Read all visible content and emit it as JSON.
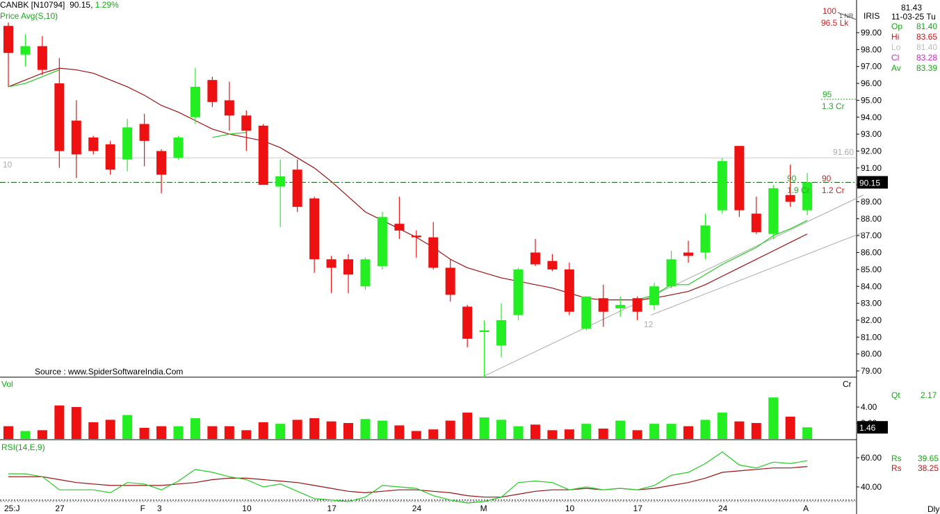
{
  "header": {
    "symbol": "CANBK [N10794]",
    "last": "90.15,",
    "change": "1.29%",
    "indicator": "Price  Avg(S,10)"
  },
  "source": "Source : www.SpiderSoftwareIndia.Com",
  "info": {
    "price": "81.43",
    "date": "11-03-25 Tu",
    "iris": "IRIS",
    "rows": [
      {
        "label": "Op",
        "value": "81.40",
        "color": "#11aa11"
      },
      {
        "label": "Hi",
        "value": "83.65",
        "color": "#cc1111"
      },
      {
        "label": "Lo",
        "value": "81.40",
        "color": "#bbbbbb"
      },
      {
        "label": "Cl",
        "value": "83.28",
        "color": "#cc22cc"
      },
      {
        "label": "Av",
        "value": "83.39",
        "color": "#11aa11"
      }
    ]
  },
  "annotations": {
    "top_price": "100",
    "top_lk": "96.5 Lk",
    "top_nr": "1 NR",
    "mid_price": "95",
    "mid_cr": "1.3 Cr",
    "right_green_price": "90",
    "right_green_cr": "1.9 Cr",
    "right_red_price": "90",
    "right_red_cr": "1.2 Cr",
    "resist_label": "91.60",
    "left_ten": "10",
    "low_twelve": "12",
    "last_price_box": "90.15"
  },
  "chart_data": [
    {
      "type": "candlestick",
      "name": "Price",
      "ylim": [
        78.5,
        100
      ],
      "yticks": [
        "79.00",
        "80.00",
        "81.00",
        "82.00",
        "83.00",
        "84.00",
        "85.00",
        "86.00",
        "87.00",
        "88.00",
        "89.00",
        "90.00",
        "91.00",
        "92.00",
        "93.00",
        "94.00",
        "95.00",
        "96.00",
        "97.00",
        "98.00",
        "99.00"
      ],
      "xlabels": [
        {
          "i": 0,
          "label": "25:J"
        },
        {
          "i": 3,
          "label": "27"
        },
        {
          "i": 8,
          "label": "F"
        },
        {
          "i": 9,
          "label": "3"
        },
        {
          "i": 14,
          "label": "10"
        },
        {
          "i": 19,
          "label": "17"
        },
        {
          "i": 24,
          "label": "24"
        },
        {
          "i": 28,
          "label": "M"
        },
        {
          "i": 33,
          "label": "10"
        },
        {
          "i": 37,
          "label": "17"
        },
        {
          "i": 42,
          "label": "24"
        },
        {
          "i": 47,
          "label": "A"
        }
      ],
      "candles": [
        {
          "o": 99.4,
          "h": 99.6,
          "l": 95.8,
          "c": 97.8
        },
        {
          "o": 97.7,
          "h": 98.9,
          "l": 97.0,
          "c": 98.2
        },
        {
          "o": 98.2,
          "h": 98.8,
          "l": 96.5,
          "c": 96.8
        },
        {
          "o": 96.0,
          "h": 97.5,
          "l": 91.0,
          "c": 92.0
        },
        {
          "o": 93.8,
          "h": 95.0,
          "l": 90.4,
          "c": 91.8
        },
        {
          "o": 92.8,
          "h": 92.9,
          "l": 91.8,
          "c": 92.0
        },
        {
          "o": 92.4,
          "h": 92.6,
          "l": 90.6,
          "c": 90.9
        },
        {
          "o": 91.5,
          "h": 93.9,
          "l": 90.8,
          "c": 93.4
        },
        {
          "o": 93.6,
          "h": 94.2,
          "l": 91.1,
          "c": 92.6
        },
        {
          "o": 92.0,
          "h": 92.1,
          "l": 89.5,
          "c": 90.6
        },
        {
          "o": 91.6,
          "h": 92.9,
          "l": 91.5,
          "c": 92.8
        },
        {
          "o": 94.0,
          "h": 96.9,
          "l": 93.6,
          "c": 95.8
        },
        {
          "o": 96.2,
          "h": 96.4,
          "l": 94.6,
          "c": 94.9
        },
        {
          "o": 95.0,
          "h": 96.1,
          "l": 93.2,
          "c": 94.1
        },
        {
          "o": 94.1,
          "h": 94.4,
          "l": 92.0,
          "c": 93.2
        },
        {
          "o": 93.5,
          "h": 93.6,
          "l": 90.0,
          "c": 90.0
        },
        {
          "o": 89.9,
          "h": 91.5,
          "l": 87.5,
          "c": 90.5
        },
        {
          "o": 90.9,
          "h": 91.5,
          "l": 88.4,
          "c": 88.7
        },
        {
          "o": 89.2,
          "h": 89.3,
          "l": 84.8,
          "c": 85.6
        },
        {
          "o": 85.6,
          "h": 85.8,
          "l": 83.6,
          "c": 85.1
        },
        {
          "o": 85.6,
          "h": 85.9,
          "l": 83.6,
          "c": 84.7
        },
        {
          "o": 84.0,
          "h": 85.7,
          "l": 83.8,
          "c": 85.6
        },
        {
          "o": 85.2,
          "h": 88.4,
          "l": 85.0,
          "c": 88.1
        },
        {
          "o": 87.7,
          "h": 89.3,
          "l": 86.8,
          "c": 87.3
        },
        {
          "o": 87.0,
          "h": 87.3,
          "l": 85.7,
          "c": 86.9
        },
        {
          "o": 86.9,
          "h": 87.8,
          "l": 85.0,
          "c": 85.1
        },
        {
          "o": 85.1,
          "h": 85.6,
          "l": 83.1,
          "c": 83.5
        },
        {
          "o": 82.8,
          "h": 82.9,
          "l": 80.4,
          "c": 80.9
        },
        {
          "o": 81.3,
          "h": 82.0,
          "l": 78.6,
          "c": 81.4
        },
        {
          "o": 80.5,
          "h": 83.0,
          "l": 79.8,
          "c": 82.0
        },
        {
          "o": 82.3,
          "h": 85.1,
          "l": 82.0,
          "c": 85.0
        },
        {
          "o": 86.0,
          "h": 86.8,
          "l": 85.2,
          "c": 85.3
        },
        {
          "o": 85.5,
          "h": 85.9,
          "l": 84.9,
          "c": 85.0
        },
        {
          "o": 85.0,
          "h": 85.4,
          "l": 82.3,
          "c": 82.5
        },
        {
          "o": 81.5,
          "h": 83.4,
          "l": 81.4,
          "c": 83.4
        },
        {
          "o": 83.3,
          "h": 84.1,
          "l": 81.6,
          "c": 82.5
        },
        {
          "o": 82.7,
          "h": 83.4,
          "l": 82.2,
          "c": 82.9
        },
        {
          "o": 83.3,
          "h": 83.4,
          "l": 82.0,
          "c": 82.5
        },
        {
          "o": 82.9,
          "h": 84.2,
          "l": 82.6,
          "c": 84.0
        },
        {
          "o": 84.0,
          "h": 86.1,
          "l": 83.9,
          "c": 85.6
        },
        {
          "o": 86.0,
          "h": 86.7,
          "l": 85.4,
          "c": 85.8
        },
        {
          "o": 86.0,
          "h": 88.3,
          "l": 85.6,
          "c": 87.6
        },
        {
          "o": 88.5,
          "h": 91.6,
          "l": 88.3,
          "c": 91.4
        },
        {
          "o": 92.3,
          "h": 92.3,
          "l": 88.1,
          "c": 88.5
        },
        {
          "o": 88.3,
          "h": 89.3,
          "l": 87.1,
          "c": 87.2
        },
        {
          "o": 87.1,
          "h": 90.0,
          "l": 86.8,
          "c": 89.8
        },
        {
          "o": 89.4,
          "h": 91.2,
          "l": 88.7,
          "c": 89.0
        },
        {
          "o": 88.5,
          "h": 90.7,
          "l": 88.2,
          "c": 90.15
        }
      ],
      "sma10": [
        95.8,
        96.2,
        96.6,
        96.9,
        96.8,
        96.6,
        96.2,
        95.8,
        95.3,
        94.7,
        94.3,
        93.8,
        93.3,
        93.0,
        92.8,
        92.6,
        92.2,
        91.6,
        91.0,
        90.2,
        89.3,
        88.4,
        87.9,
        87.4,
        86.9,
        86.3,
        85.6,
        85.1,
        84.8,
        84.5,
        84.3,
        84.1,
        83.9,
        83.6,
        83.3,
        83.2,
        83.2,
        83.2,
        83.3,
        83.5,
        83.7,
        84.1,
        84.6,
        85.1,
        85.6,
        86.1,
        86.6,
        87.1
      ],
      "sma10_green": [
        {
          "i": 0,
          "v": 95.8
        },
        {
          "i": 1,
          "v": 96.0
        },
        {
          "i": 2,
          "v": 96.4
        },
        {
          "i": 3,
          "v": 96.8
        },
        {
          "i": 12,
          "v": 92.8
        },
        {
          "i": 13,
          "v": 93.0
        },
        {
          "i": 14,
          "v": 93.1
        },
        {
          "i": 37,
          "v": 83.2
        },
        {
          "i": 38,
          "v": 83.5
        },
        {
          "i": 39,
          "v": 84.1
        },
        {
          "i": 40,
          "v": 84.1
        },
        {
          "i": 41,
          "v": 84.7
        },
        {
          "i": 42,
          "v": 85.3
        },
        {
          "i": 43,
          "v": 85.8
        },
        {
          "i": 44,
          "v": 86.3
        },
        {
          "i": 45,
          "v": 87.0
        },
        {
          "i": 46,
          "v": 87.4
        },
        {
          "i": 47,
          "v": 87.9
        }
      ],
      "resistance": 91.6,
      "last": 90.15,
      "trendlines": [
        {
          "from": {
            "i": 28.0,
            "v": 78.7
          },
          "to": {
            "i": 50.3,
            "v": 89.4
          }
        },
        {
          "from": {
            "i": 37.8,
            "v": 82.3
          },
          "to": {
            "i": 50.3,
            "v": 87.2
          }
        }
      ]
    },
    {
      "type": "bar",
      "name": "Vol",
      "unit": "Cr",
      "yticks": [
        "2.00",
        "4.00"
      ],
      "last_box": "1.46",
      "qt_label": "Qt",
      "qt_value": "2.17",
      "values": [
        1.6,
        1.0,
        1.1,
        4.2,
        4.0,
        2.1,
        2.4,
        3.0,
        1.4,
        1.6,
        1.6,
        2.6,
        1.6,
        1.6,
        1.1,
        2.1,
        1.9,
        2.4,
        2.6,
        2.2,
        2.0,
        2.5,
        2.3,
        1.7,
        1.0,
        1.2,
        2.3,
        3.3,
        2.7,
        2.4,
        1.6,
        1.8,
        1.1,
        1.2,
        1.9,
        1.3,
        2.3,
        1.1,
        1.9,
        1.9,
        1.6,
        2.4,
        3.3,
        2.2,
        2.0,
        5.2,
        2.8,
        1.46
      ]
    },
    {
      "type": "line",
      "name": "RSI(14,E,9)",
      "ylim": [
        30,
        70
      ],
      "yticks": [
        "40.00",
        "60.00"
      ],
      "legend": [
        {
          "label": "Rs",
          "value": "39.65",
          "color": "#11aa11"
        },
        {
          "label": "Rs",
          "value": "38.25",
          "color": "#cc1111"
        }
      ],
      "rsi": [
        49,
        49,
        47,
        38,
        38,
        38,
        36,
        43,
        42,
        38,
        44,
        52,
        50,
        47,
        45,
        40,
        42,
        37,
        32,
        31,
        30,
        33,
        41,
        40,
        39,
        34,
        31,
        29,
        30,
        33,
        43,
        44,
        43,
        38,
        40,
        38,
        39,
        38,
        41,
        48,
        50,
        56,
        64,
        55,
        53,
        57,
        56,
        58
      ],
      "signal": [
        47,
        47,
        47,
        45,
        43,
        42,
        41,
        41,
        41,
        41,
        42,
        43,
        45,
        46,
        46,
        45,
        44,
        43,
        41,
        39,
        37,
        36,
        37,
        38,
        38,
        37,
        36,
        34,
        33,
        33,
        35,
        37,
        38,
        38,
        39,
        38,
        39,
        38,
        39,
        41,
        43,
        46,
        50,
        51,
        52,
        53,
        53,
        54
      ]
    }
  ]
}
